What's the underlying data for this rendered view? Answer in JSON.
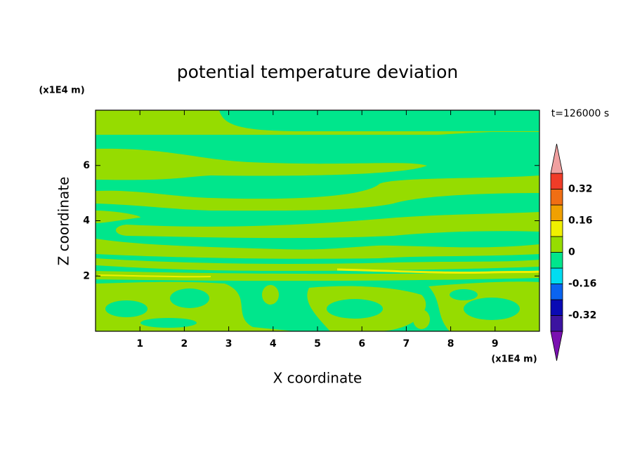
{
  "chart_data": {
    "type": "contour",
    "title": "potential temperature deviation",
    "x_label": "X coordinate",
    "y_label": "Z coordinate",
    "x_unit": "(x1E4 m)",
    "y_unit": "(x1E4 m)",
    "time_label": "t=126000 s",
    "xlim": [
      0,
      10
    ],
    "xticks": [
      1,
      2,
      3,
      4,
      5,
      6,
      7,
      8,
      9
    ],
    "ylim": [
      0,
      8
    ],
    "yticks": [
      2,
      4,
      6
    ],
    "colorbar": {
      "levels": [
        -0.4,
        -0.32,
        -0.24,
        -0.16,
        -0.08,
        0,
        0.08,
        0.16,
        0.24,
        0.32,
        0.4
      ],
      "ticks": [
        -0.32,
        -0.16,
        0,
        0.16,
        0.32
      ],
      "colors": [
        "#7a10b0",
        "#3c14a0",
        "#0a0ab4",
        "#0a64f0",
        "#00dcf0",
        "#00e68c",
        "#96dc00",
        "#f0f000",
        "#f0a000",
        "#f06e14",
        "#f03c28",
        "#f0a0a0"
      ]
    }
  }
}
